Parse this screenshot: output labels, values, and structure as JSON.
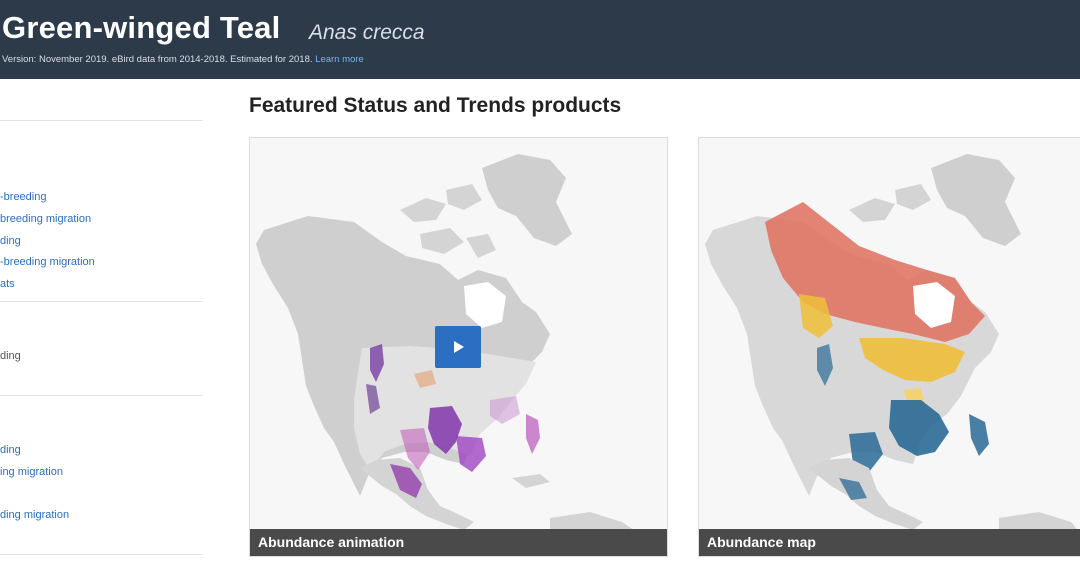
{
  "header": {
    "common_name": "Green-winged Teal",
    "scientific_name": "Anas crecca",
    "meta_text": "Version: November 2019. eBird data from 2014-2018. Estimated for 2018.",
    "learn_more": "Learn more"
  },
  "sidebar": {
    "group1": [
      {
        "label": "-breeding"
      },
      {
        "label": "breeding migration"
      },
      {
        "label": "ding"
      },
      {
        "label": "-breeding migration"
      },
      {
        "label": "ats"
      }
    ],
    "group2_text": "ding",
    "group3": [
      {
        "label": "ding"
      },
      {
        "label": "ing migration"
      },
      {
        "label": "ding migration"
      }
    ]
  },
  "main": {
    "section_title": "Featured Status and Trends products",
    "cards": [
      {
        "caption": "Abundance animation",
        "icon": "play-icon"
      },
      {
        "caption": "Abundance map",
        "icon": "map-icon"
      }
    ]
  },
  "colors": {
    "header_bg": "#2c3a4a",
    "link": "#2a6fc1",
    "play_button": "#2a6fc1",
    "caption_bg": "#4a4a4a",
    "land_gray": "#cfcfcf",
    "abundance_purple": "#7a2aa8",
    "abundance_red": "#e07565",
    "abundance_yellow": "#f0bf3a",
    "abundance_blue": "#2b6a96"
  }
}
